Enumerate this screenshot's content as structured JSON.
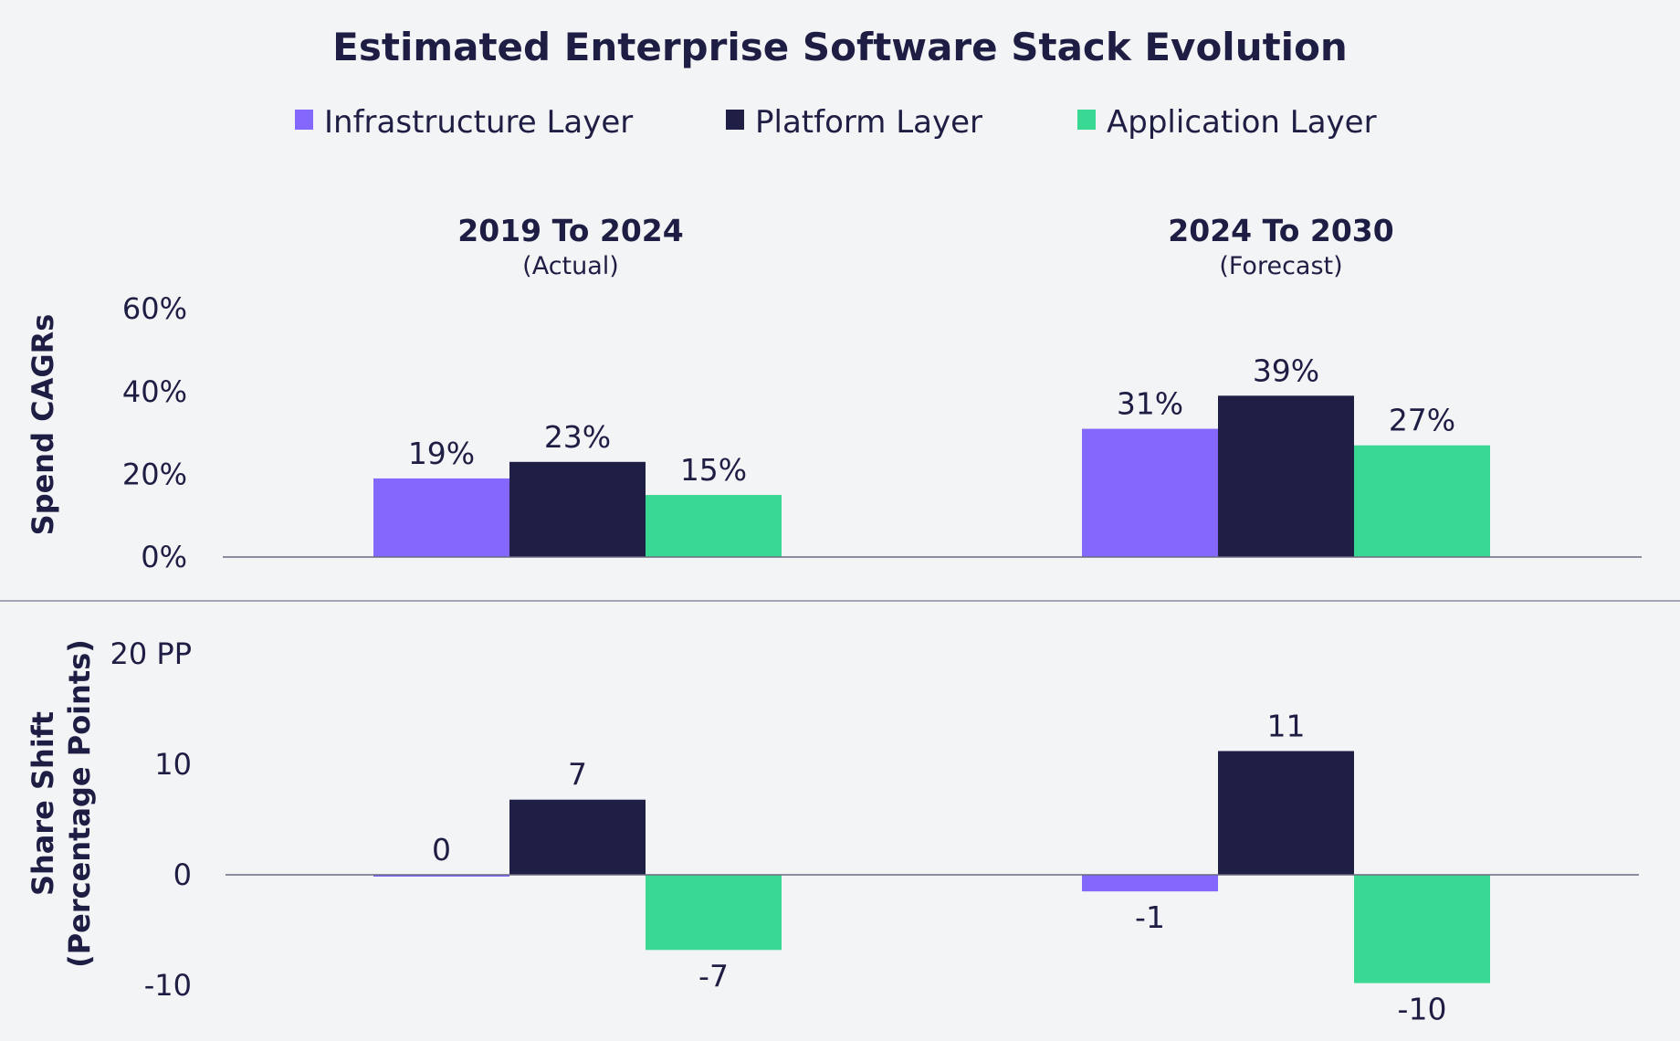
{
  "title": "Estimated Enterprise Software Stack Evolution",
  "legend": [
    {
      "label": "Infrastructure Layer",
      "color": "#8467fc"
    },
    {
      "label": "Platform Layer",
      "color": "#1f1f45"
    },
    {
      "label": "Application Layer",
      "color": "#39d994"
    }
  ],
  "groups": [
    {
      "title": "2019 To 2024",
      "subtitle": "(Actual)"
    },
    {
      "title": "2024 To 2030",
      "subtitle": "(Forecast)"
    }
  ],
  "chart_data": [
    {
      "type": "bar",
      "ylabel": "Spend CAGRs",
      "categories": [
        "2019 To 2024",
        "2024 To 2030"
      ],
      "ylim": [
        0,
        60
      ],
      "yticks": [
        "0%",
        "20%",
        "40%",
        "60%"
      ],
      "series": [
        {
          "name": "Infrastructure Layer",
          "values": [
            19,
            31
          ],
          "labels": [
            "19%",
            "31%"
          ]
        },
        {
          "name": "Platform Layer",
          "values": [
            23,
            39
          ],
          "labels": [
            "23%",
            "39%"
          ]
        },
        {
          "name": "Application Layer",
          "values": [
            15,
            27
          ],
          "labels": [
            "15%",
            "27%"
          ]
        }
      ]
    },
    {
      "type": "bar",
      "ylabel": "Share Shift",
      "ylabel_sub": "(Percentage Points)",
      "categories": [
        "2019 To 2024",
        "2024 To 2030"
      ],
      "ylim": [
        -10,
        20
      ],
      "yticks": [
        "-10",
        "0",
        "10",
        "20 PP"
      ],
      "series": [
        {
          "name": "Infrastructure Layer",
          "values": [
            0,
            -1.5
          ],
          "labels": [
            "0",
            "-1"
          ]
        },
        {
          "name": "Platform Layer",
          "values": [
            6.8,
            11.2
          ],
          "labels": [
            "7",
            "11"
          ]
        },
        {
          "name": "Application Layer",
          "values": [
            -6.8,
            -9.8
          ],
          "labels": [
            "-7",
            "-10"
          ]
        }
      ]
    }
  ]
}
